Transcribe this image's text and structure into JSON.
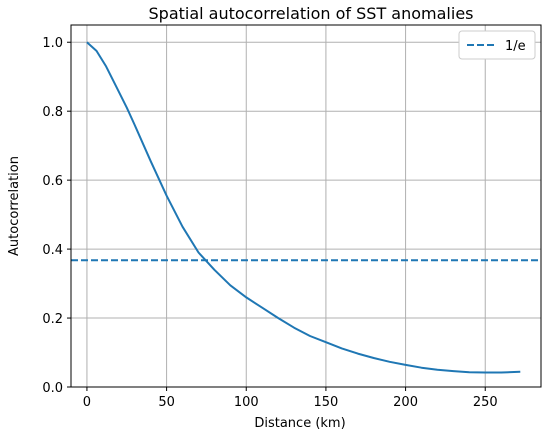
{
  "chart_data": {
    "type": "line",
    "title": "Spatial autocorrelation of SST anomalies",
    "xlabel": "Distance (km)",
    "ylabel": "Autocorrelation",
    "xlim": [
      -10,
      285
    ],
    "ylim": [
      0,
      1.05
    ],
    "xticks": [
      0,
      50,
      100,
      150,
      200,
      250
    ],
    "yticks": [
      0.0,
      0.2,
      0.4,
      0.6,
      0.8,
      1.0
    ],
    "xtick_labels": [
      "0",
      "50",
      "100",
      "150",
      "200",
      "250"
    ],
    "ytick_labels": [
      "0.0",
      "0.2",
      "0.4",
      "0.6",
      "0.8",
      "1.0"
    ],
    "grid": true,
    "legend_position": "top-right",
    "colors": {
      "series": "#1f77b4"
    },
    "series": [
      {
        "style": "solid",
        "x": [
          0,
          6,
          12,
          18,
          25,
          30,
          40,
          50,
          60,
          70,
          80,
          90,
          100,
          110,
          120,
          130,
          140,
          150,
          160,
          170,
          180,
          190,
          200,
          210,
          220,
          230,
          240,
          250,
          260,
          272
        ],
        "y": [
          1.0,
          0.975,
          0.93,
          0.875,
          0.81,
          0.76,
          0.655,
          0.555,
          0.465,
          0.39,
          0.34,
          0.295,
          0.26,
          0.23,
          0.2,
          0.172,
          0.148,
          0.13,
          0.112,
          0.097,
          0.084,
          0.073,
          0.064,
          0.056,
          0.05,
          0.046,
          0.043,
          0.042,
          0.042,
          0.044
        ]
      },
      {
        "name": "1/e",
        "style": "dashed",
        "x": [
          -10,
          285
        ],
        "y": [
          0.3679,
          0.3679
        ]
      }
    ]
  }
}
